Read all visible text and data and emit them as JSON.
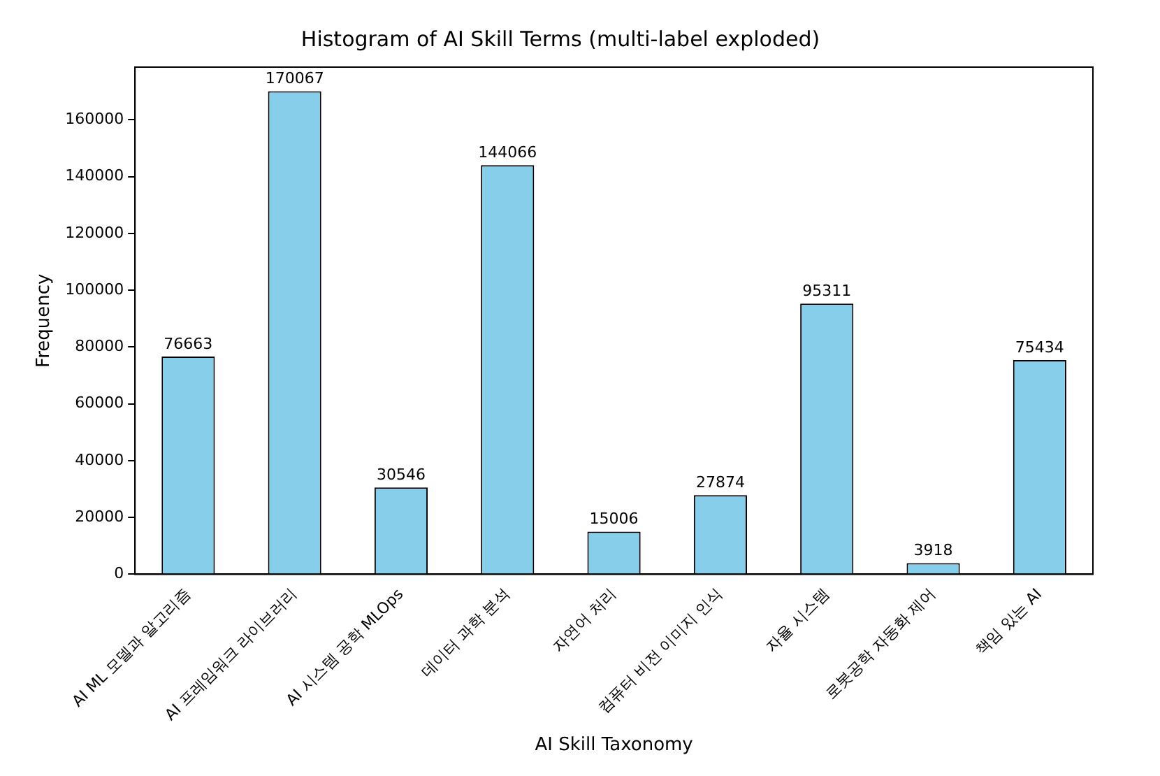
{
  "chart_data": {
    "type": "bar",
    "title": "Histogram of AI Skill Terms (multi-label exploded)",
    "xlabel": "AI Skill Taxonomy",
    "ylabel": "Frequency",
    "categories": [
      "AI ML 모델과 알고리즘",
      "AI 프레임워크 라이브러리",
      "AI 시스템 공학 MLOps",
      "데이터 과학 분석",
      "자연어 처리",
      "컴퓨터 비전 이미지 인식",
      "자율 시스템",
      "로봇공학 자동화 제어",
      "책임 있는 AI"
    ],
    "values": [
      76663,
      170067,
      30546,
      144066,
      15006,
      27874,
      95311,
      3918,
      75434
    ],
    "color": "#87ceeb",
    "ylim": [
      0,
      178570
    ],
    "yticks": [
      0,
      20000,
      40000,
      60000,
      80000,
      100000,
      120000,
      140000,
      160000
    ],
    "data_labels": true,
    "grid": false,
    "legend": false
  }
}
